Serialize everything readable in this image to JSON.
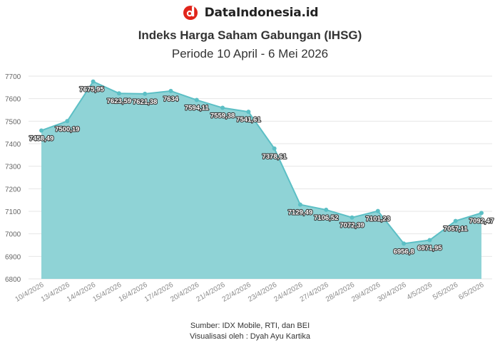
{
  "brand": {
    "name": "DataIndonesia.id",
    "icon": "dataindonesia-logo-icon",
    "color": "#e1251b"
  },
  "header": {
    "title": "Indeks Harga Saham Gabungan (IHSG)",
    "subtitle": "Periode 10 April - 6 Mei 2026"
  },
  "footer": {
    "source": "Sumber: IDX Mobile, RTI, dan BEI",
    "credit": "Visualisasi oleh : Dyah Ayu Kartika"
  },
  "colors": {
    "area": "#8fd3d6",
    "line": "#5cbfc5",
    "marker": "#5cbfc5",
    "grid": "#e6e6e6"
  },
  "chart_data": {
    "type": "area",
    "title": "Indeks Harga Saham Gabungan (IHSG)",
    "subtitle": "Periode 10 April - 6 Mei 2026",
    "xlabel": "",
    "ylabel": "",
    "ylim": [
      6800,
      7700
    ],
    "yticks": [
      6800,
      6900,
      7000,
      7100,
      7200,
      7300,
      7400,
      7500,
      7600,
      7700
    ],
    "grid": true,
    "categories": [
      "10/4/2026",
      "13/4/2026",
      "14/4/2026",
      "15/4/2026",
      "16/4/2026",
      "17/4/2026",
      "20/4/2026",
      "21/4/2026",
      "22/4/2026",
      "23/4/2026",
      "24/4/2026",
      "27/4/2026",
      "28/4/2026",
      "29/4/2026",
      "30/4/2026",
      "4/5/2026",
      "5/5/2026",
      "6/5/2026"
    ],
    "series": [
      {
        "values": [
          7458.49,
          7500.19,
          7675.95,
          7623.59,
          7621.38,
          7634,
          7594.11,
          7559.38,
          7541.61,
          7378.61,
          7129.49,
          7106.52,
          7072.39,
          7101.23,
          6956.8,
          6971.95,
          7057.11,
          7092.47
        ],
        "labels": [
          "7458,49",
          "7500,19",
          "7675,95",
          "7623,59",
          "7621,38",
          "7634",
          "7594,11",
          "7559,38",
          "7541,61",
          "7378,61",
          "7129,49",
          "7106,52",
          "7072,39",
          "7101,23",
          "6956,8",
          "6971,95",
          "7057,11",
          "7092,47"
        ]
      }
    ]
  }
}
